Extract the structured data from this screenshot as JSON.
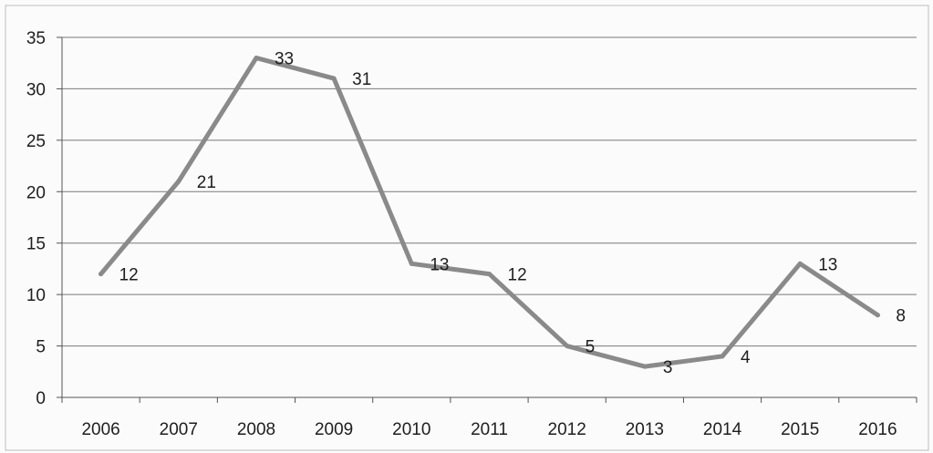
{
  "chart_data": {
    "type": "line",
    "categories": [
      "2006",
      "2007",
      "2008",
      "2009",
      "2010",
      "2011",
      "2012",
      "2013",
      "2014",
      "2015",
      "2016"
    ],
    "series": [
      {
        "values": [
          12,
          21,
          33,
          31,
          13,
          12,
          5,
          3,
          4,
          13,
          8
        ]
      }
    ],
    "data_labels": [
      "12",
      "21",
      "33",
      "31",
      "13",
      "12",
      "5",
      "3",
      "4",
      "13",
      "8"
    ],
    "ylim": [
      0,
      35
    ],
    "y_ticks": [
      "0",
      "5",
      "10",
      "15",
      "20",
      "25",
      "30",
      "35"
    ],
    "grid": "horizontal",
    "legend": "none",
    "colors": {
      "line": "#8a8a8a",
      "grid": "#7a7a7a",
      "axis": "#555555",
      "text": "#1e1e1e"
    }
  }
}
